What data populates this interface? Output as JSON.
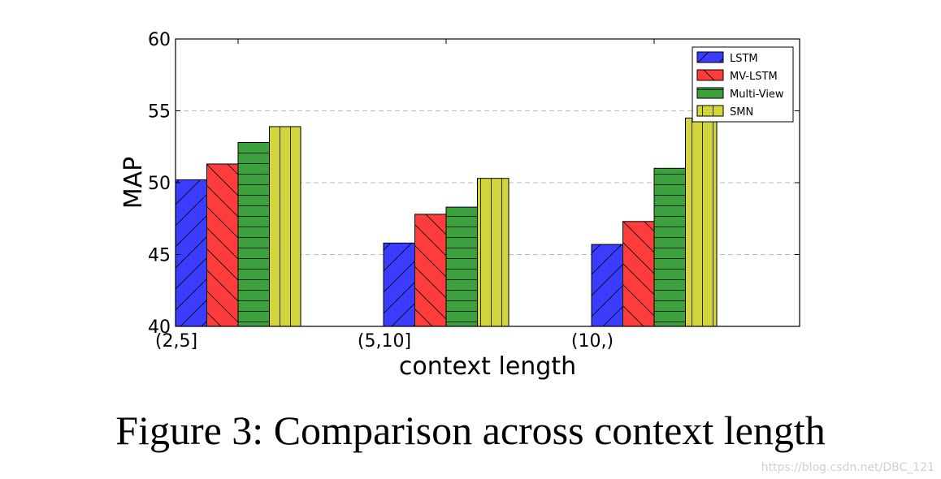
{
  "chart_data": {
    "type": "bar",
    "categories": [
      "(2,5]",
      "(5,10]",
      "(10,)"
    ],
    "series": [
      {
        "name": "LSTM",
        "values": [
          50.2,
          45.8,
          45.7
        ],
        "color": "#3c3cff",
        "hatch": "/"
      },
      {
        "name": "MV-LSTM",
        "values": [
          51.3,
          47.8,
          47.3
        ],
        "color": "#ff3c3c",
        "hatch": "\\"
      },
      {
        "name": "Multi-View",
        "values": [
          52.8,
          48.3,
          51.0
        ],
        "color": "#3ca03c",
        "hatch": "-"
      },
      {
        "name": "SMN",
        "values": [
          53.9,
          50.3,
          54.5
        ],
        "color": "#d4d43c",
        "hatch": "|"
      }
    ],
    "xlabel": "context length",
    "ylabel": "MAP",
    "ylim": [
      40,
      60
    ],
    "yticks": [
      40,
      45,
      50,
      55,
      60
    ],
    "grid": "horizontal dashed",
    "legend_position": "top-right"
  },
  "caption": "Figure 3: Comparison across context length",
  "watermark": "https://blog.csdn.net/DBC_121"
}
